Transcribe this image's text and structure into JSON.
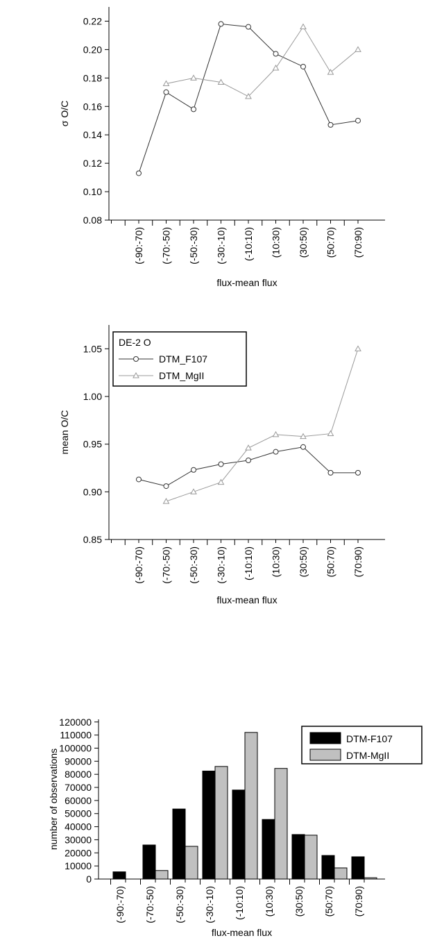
{
  "chart_data": [
    {
      "type": "line",
      "ylabel": "σ O/C",
      "xlabel": "flux-mean flux",
      "categories": [
        "(-90:-70)",
        "(-70:-50)",
        "(-50:-30)",
        "(-30:-10)",
        "(-10:10)",
        "(10:30)",
        "(30:50)",
        "(50:70)",
        "(70:90)"
      ],
      "series": [
        {
          "name": "DTM_F107",
          "color": "#333333",
          "marker": "circle",
          "values": [
            0.113,
            0.17,
            0.158,
            0.218,
            0.216,
            0.197,
            0.188,
            0.147,
            0.15
          ]
        },
        {
          "name": "DTM_MgII",
          "color": "#999999",
          "marker": "triangle",
          "values": [
            null,
            0.176,
            0.18,
            0.177,
            0.167,
            0.187,
            0.216,
            0.184,
            0.2
          ]
        }
      ],
      "ylim": [
        0.08,
        0.23
      ],
      "yticks": [
        0.08,
        {
          "value": 0.1,
          "label": "0.10"
        },
        0.12,
        0.14,
        0.16,
        0.18,
        {
          "value": 0.2,
          "label": "0.20"
        },
        0.22
      ],
      "legend": false
    },
    {
      "type": "line",
      "ylabel": "mean O/C",
      "xlabel": "flux-mean flux",
      "categories": [
        "(-90:-70)",
        "(-70:-50)",
        "(-50:-30)",
        "(-30:-10)",
        "(-10:10)",
        "(10:30)",
        "(30:50)",
        "(50:70)",
        "(70:90)"
      ],
      "series": [
        {
          "name": "DTM_F107",
          "color": "#333333",
          "marker": "circle",
          "values": [
            0.913,
            0.906,
            0.923,
            0.929,
            0.933,
            0.942,
            0.947,
            0.92,
            0.92
          ]
        },
        {
          "name": "DTM_MgII",
          "color": "#999999",
          "marker": "triangle",
          "values": [
            null,
            0.89,
            0.9,
            0.91,
            0.946,
            0.96,
            0.958,
            0.961,
            1.05
          ]
        }
      ],
      "ylim": [
        0.85,
        1.075
      ],
      "yticks": [
        0.85,
        {
          "value": 0.9,
          "label": "0.90"
        },
        0.95,
        {
          "value": 1,
          "label": "1.00"
        },
        1.05
      ],
      "legend": "upper left",
      "legend_title": "DE-2 O"
    },
    {
      "type": "bar",
      "ylabel": "number of observations",
      "xlabel": "flux-mean flux",
      "categories": [
        "(-90:-70)",
        "(-70:-50)",
        "(-50:-30)",
        "(-30:-10)",
        "(-10:10)",
        "(10:30)",
        "(30:50)",
        "(50:70)",
        "(70:90)"
      ],
      "series": [
        {
          "name": "DTM-F107",
          "color": "#000000",
          "values": [
            5500,
            26000,
            53500,
            82500,
            68000,
            45500,
            34000,
            18000,
            17000
          ]
        },
        {
          "name": "DTM-MgII",
          "color": "#c0c0c0",
          "values": [
            0,
            6500,
            25000,
            86000,
            112000,
            84500,
            33500,
            8500,
            1000
          ]
        }
      ],
      "ylim": [
        0,
        122000
      ],
      "yticks": [
        0,
        10000,
        20000,
        30000,
        40000,
        50000,
        60000,
        70000,
        80000,
        90000,
        100000,
        110000,
        120000
      ],
      "legend": "upper right"
    }
  ]
}
